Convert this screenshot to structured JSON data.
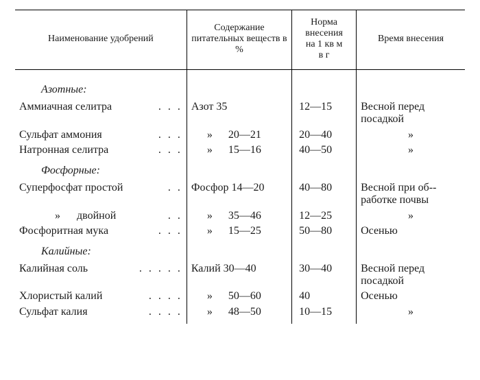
{
  "header": {
    "name": "Наименование удобрений",
    "nutrients": "Содержание питательных веществ в %",
    "norm_l1": "Норма",
    "norm_l2": "внесения",
    "norm_l3": "на 1 кв м",
    "norm_l4": "в г",
    "time": "Время внесения"
  },
  "cat": {
    "nitrogen": "Азотные:",
    "phosphor": "Фосфорные:",
    "potassium": "Калийные:"
  },
  "rows": {
    "n1": {
      "name": "Аммиачная селитра",
      "dots": ". . .",
      "nutr": "Азот 35",
      "norm": "12—15",
      "time": "Весной перед посадкой"
    },
    "n2": {
      "name": "Сульфат аммония",
      "dots": ". . .",
      "nutr_rep": "»",
      "nutr_val": "20—21",
      "norm": "20—40",
      "time_rep": "»"
    },
    "n3": {
      "name": "Натронная селитра",
      "dots": ". . .",
      "nutr_rep": "»",
      "nutr_val": "15—16",
      "norm": "40—50",
      "time_rep": "»"
    },
    "p1": {
      "name": "Суперфосфат простой",
      "dots": ". .",
      "nutr": "Фосфор  14—20",
      "norm": "40—80",
      "time": "Весной при об-­работке почвы"
    },
    "p2": {
      "name_rep": "»",
      "name_tail": "двойной",
      "dots": ". .",
      "nutr_rep": "»",
      "nutr_val": "35—46",
      "norm": "12—25",
      "time_rep": "»"
    },
    "p3": {
      "name": "Фосфоритная мука",
      "dots": ". . .",
      "nutr_rep": "»",
      "nutr_val": "15—25",
      "norm": "50—80",
      "time": "Осенью"
    },
    "k1": {
      "name": "Калийная соль",
      "dots": ". . . . .",
      "nutr": "Калий 30—40",
      "norm": "30—40",
      "time": "Весной перед посадкой"
    },
    "k2": {
      "name": "Хлористый калий",
      "dots": ". . . .",
      "nutr_rep": "»",
      "nutr_val": "50—60",
      "norm": "40",
      "time": "Осенью"
    },
    "k3": {
      "name": "Сульфат калия",
      "dots": ". . . .",
      "nutr_rep": "»",
      "nutr_val": "48—50",
      "norm": "10—15",
      "time_rep": "»"
    }
  }
}
